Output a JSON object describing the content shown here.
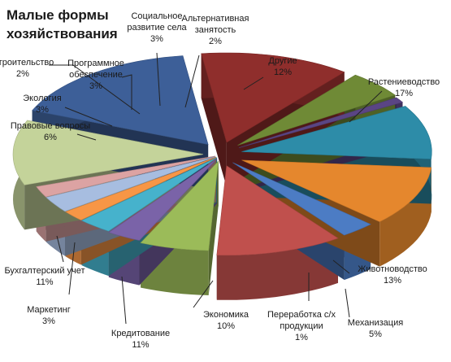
{
  "chart_data": {
    "type": "pie",
    "title_lines": [
      "Малые формы",
      "хозяйствования"
    ],
    "slices": [
      {
        "name": "Другие",
        "value": 12,
        "color": "#c4d39a"
      },
      {
        "name": "Растениеводство",
        "value": 17,
        "color": "#3d5f98"
      },
      {
        "name": "Животноводство",
        "value": 13,
        "color": "#8f2e2c"
      },
      {
        "name": "Механизация",
        "value": 5,
        "color": "#6f8a36"
      },
      {
        "name": "Переработка с/х продукции",
        "value": 1,
        "color": "#5a4584"
      },
      {
        "name": "Экономика",
        "value": 10,
        "color": "#2d8ca8"
      },
      {
        "name": "Кредитование",
        "value": 11,
        "color": "#e5872d"
      },
      {
        "name": "Маркетинг",
        "value": 3,
        "color": "#4c7cc4"
      },
      {
        "name": "Бухгалтерский учет",
        "value": 11,
        "color": "#c0504d"
      },
      {
        "name": "Правовые вопросы",
        "value": 6,
        "color": "#9bbb59"
      },
      {
        "name": "Экология",
        "value": 3,
        "color": "#7a63a8"
      },
      {
        "name": "Программное обеспечение",
        "value": 3,
        "color": "#46b2cc"
      },
      {
        "name": "Строительство",
        "value": 2,
        "color": "#f79646"
      },
      {
        "name": "Социальное развитие села",
        "value": 3,
        "color": "#a7bde0"
      },
      {
        "name": "Альтернативная занятость",
        "value": 2,
        "color": "#dca3a3"
      }
    ],
    "labels": [
      {
        "lines": [
          "Другие",
          "12%"
        ]
      },
      {
        "lines": [
          "Растениеводство",
          "17%"
        ]
      },
      {
        "lines": [
          "Животноводство",
          "13%"
        ]
      },
      {
        "lines": [
          "Механизация",
          "5%"
        ]
      },
      {
        "lines": [
          "Переработка с/х",
          "продукции",
          "1%"
        ]
      },
      {
        "lines": [
          "Экономика",
          "10%"
        ]
      },
      {
        "lines": [
          "Кредитование",
          "11%"
        ]
      },
      {
        "lines": [
          "Маркетинг",
          "3%"
        ]
      },
      {
        "lines": [
          "Бухгалтерский учет",
          "11%"
        ]
      },
      {
        "lines": [
          "Правовые вопросы",
          "6%"
        ]
      },
      {
        "lines": [
          "Экология",
          "3%"
        ]
      },
      {
        "lines": [
          "Программное",
          "обеспечение",
          "3%"
        ]
      },
      {
        "lines": [
          "Строительство",
          "2%"
        ]
      },
      {
        "lines": [
          "Социальное",
          "развитие села",
          "3%"
        ]
      },
      {
        "lines": [
          "Альтернативная",
          "занятость",
          "2%"
        ]
      }
    ],
    "exploded": true,
    "style": "3d",
    "legend": "none"
  }
}
